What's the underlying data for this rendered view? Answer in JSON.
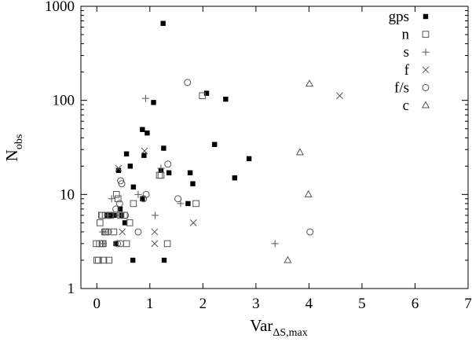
{
  "chart_data": {
    "type": "scatter",
    "xlabel": "Var",
    "xlabel_sub": "ΔS,max",
    "ylabel": "N",
    "ylabel_sub": "obs",
    "xlim": [
      -0.3,
      7
    ],
    "ylim": [
      1,
      1000
    ],
    "y_scale": "log",
    "grid": false,
    "legend_position": "top-right",
    "x_ticks": [
      0,
      1,
      2,
      3,
      4,
      5,
      6,
      7
    ],
    "x_tick_labels": [
      "0",
      "1",
      "2",
      "3",
      "4",
      "5",
      "6",
      "7"
    ],
    "y_ticks": [
      1,
      10,
      100,
      1000
    ],
    "y_tick_labels": [
      "1",
      "10",
      "100",
      "1000"
    ],
    "series": [
      {
        "name": "gps",
        "marker": "filled-square",
        "points": [
          [
            0.63,
            20
          ],
          [
            0.56,
            27
          ],
          [
            0.86,
            49
          ],
          [
            0.95,
            45
          ],
          [
            0.89,
            26
          ],
          [
            1.07,
            95
          ],
          [
            1.26,
            31
          ],
          [
            1.21,
            18
          ],
          [
            1.36,
            17
          ],
          [
            1.76,
            17
          ],
          [
            1.81,
            13
          ],
          [
            1.72,
            8
          ],
          [
            2.07,
            119
          ],
          [
            2.43,
            103
          ],
          [
            2.22,
            34
          ],
          [
            2.87,
            24
          ],
          [
            2.6,
            15
          ],
          [
            0.41,
            18
          ],
          [
            0.47,
            6
          ],
          [
            0.53,
            5
          ],
          [
            0.44,
            7
          ],
          [
            0.36,
            3
          ],
          [
            0.29,
            6
          ],
          [
            0.2,
            6
          ],
          [
            0.33,
            6
          ],
          [
            0.69,
            12
          ],
          [
            0.86,
            9
          ],
          [
            0.68,
            2
          ],
          [
            1.27,
            2
          ],
          [
            1.25,
            658
          ]
        ]
      },
      {
        "name": "n",
        "marker": "open-square",
        "points": [
          [
            0.1,
            6
          ],
          [
            0.16,
            6
          ],
          [
            0.06,
            5
          ],
          [
            0.15,
            4
          ],
          [
            0.1,
            3
          ],
          [
            0.05,
            3
          ],
          [
            0.12,
            3
          ],
          [
            -0.01,
            3
          ],
          [
            0.03,
            2
          ],
          [
            0.0,
            2
          ],
          [
            0.13,
            2
          ],
          [
            0.23,
            2
          ],
          [
            0.26,
            6
          ],
          [
            0.32,
            4
          ],
          [
            0.4,
            9
          ],
          [
            0.37,
            10
          ],
          [
            0.45,
            6
          ],
          [
            0.52,
            6
          ],
          [
            0.56,
            3
          ],
          [
            0.62,
            5
          ],
          [
            0.69,
            8
          ],
          [
            1.18,
            16
          ],
          [
            1.21,
            16
          ],
          [
            1.99,
            112
          ],
          [
            1.87,
            8
          ],
          [
            1.33,
            3
          ],
          [
            0.09,
            6
          ],
          [
            0.17,
            4
          ]
        ]
      },
      {
        "name": "s",
        "marker": "plus",
        "points": [
          [
            0.92,
            105
          ],
          [
            1.21,
            19
          ],
          [
            0.78,
            10
          ],
          [
            1.1,
            6
          ],
          [
            1.58,
            8
          ],
          [
            0.11,
            4
          ],
          [
            0.14,
            4
          ],
          [
            0.2,
            6
          ],
          [
            0.12,
            3
          ],
          [
            0.28,
            9
          ],
          [
            0.4,
            6
          ],
          [
            3.36,
            3
          ]
        ]
      },
      {
        "name": "f",
        "marker": "cross",
        "points": [
          [
            0.41,
            19
          ],
          [
            0.9,
            29
          ],
          [
            1.82,
            5
          ],
          [
            1.09,
            4
          ],
          [
            1.09,
            3
          ],
          [
            0.48,
            4
          ],
          [
            4.58,
            112
          ]
        ]
      },
      {
        "name": "f/s",
        "marker": "open-circle",
        "points": [
          [
            1.71,
            155
          ],
          [
            1.34,
            21
          ],
          [
            0.47,
            13
          ],
          [
            0.45,
            14
          ],
          [
            0.93,
            10
          ],
          [
            0.88,
            9
          ],
          [
            1.53,
            9
          ],
          [
            0.25,
            6
          ],
          [
            0.36,
            7
          ],
          [
            0.43,
            8
          ],
          [
            0.22,
            4
          ],
          [
            0.78,
            4
          ],
          [
            0.54,
            6
          ],
          [
            0.39,
            3
          ],
          [
            0.45,
            3
          ],
          [
            4.02,
            4
          ]
        ]
      },
      {
        "name": "c",
        "marker": "open-triangle",
        "points": [
          [
            4.01,
            150
          ],
          [
            3.83,
            28
          ],
          [
            3.99,
            10
          ],
          [
            3.6,
            2
          ]
        ]
      }
    ]
  }
}
